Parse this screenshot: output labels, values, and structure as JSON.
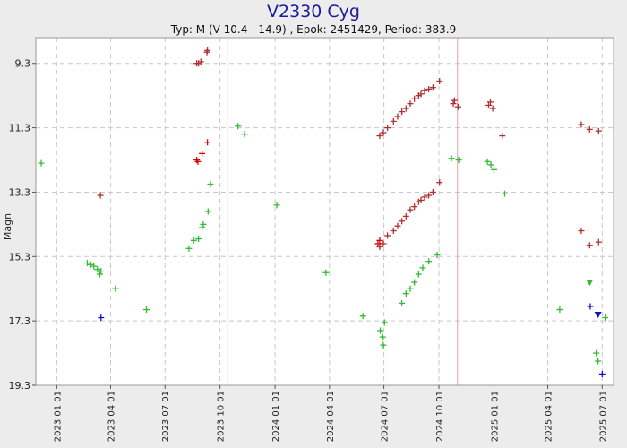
{
  "chart_data": {
    "type": "scatter",
    "title": "V2330 Cyg",
    "subtitle": "Typ: M (V 10.4 - 14.9) , Epok: 2451429, Period: 383.9",
    "ylabel": "Magn",
    "xlabel": "",
    "y_inverted": true,
    "ylim": [
      19.3,
      8.5
    ],
    "xlim": [
      "2022-11-27",
      "2025-07-20"
    ],
    "y_ticks": [
      9.3,
      11.3,
      13.3,
      15.3,
      17.3,
      19.3
    ],
    "y_tick_labels": [
      "9.3",
      "11.3",
      "13.3",
      "15.3",
      "17.3",
      "19.3"
    ],
    "x_ticks": [
      "2023-01-01",
      "2023-04-01",
      "2023-07-01",
      "2023-10-01",
      "2024-01-01",
      "2024-04-01",
      "2024-07-01",
      "2024-10-01",
      "2025-01-01",
      "2025-04-01",
      "2025-07-01"
    ],
    "x_tick_labels": [
      "2023 01 01",
      "2023 04 01",
      "2023 07 01",
      "2023 10 01",
      "2024 01 01",
      "2024 04 01",
      "2024 07 01",
      "2024 10 01",
      "2025 01 01",
      "2025 04 01",
      "2025 07 01"
    ],
    "max_lines": [
      "2023-10-14",
      "2024-11-01"
    ],
    "grid": true,
    "colors": {
      "background": "#ececec",
      "plot_background": "#ffffff",
      "grid": "#c8c8c8",
      "max_line": "#e6a0a0",
      "title": "#1a1a9c"
    },
    "series": [
      {
        "color": "#b03030",
        "marker": "plus",
        "points": [
          [
            "2023-08-23",
            9.3
          ],
          [
            "2023-08-26",
            9.3
          ],
          [
            "2023-08-30",
            9.25
          ],
          [
            "2023-09-09",
            8.95
          ],
          [
            "2023-09-10",
            8.9
          ],
          [
            "2024-06-24",
            11.55
          ],
          [
            "2024-06-30",
            11.45
          ],
          [
            "2024-07-07",
            11.3
          ],
          [
            "2024-07-17",
            11.1
          ],
          [
            "2024-07-24",
            10.95
          ],
          [
            "2024-07-31",
            10.8
          ],
          [
            "2024-08-07",
            10.7
          ],
          [
            "2024-08-14",
            10.55
          ],
          [
            "2024-08-21",
            10.4
          ],
          [
            "2024-08-28",
            10.3
          ],
          [
            "2024-09-01",
            10.25
          ],
          [
            "2024-09-07",
            10.15
          ],
          [
            "2024-09-14",
            10.1
          ],
          [
            "2024-09-21",
            10.05
          ],
          [
            "2024-10-02",
            9.85
          ],
          [
            "2024-10-25",
            10.55
          ],
          [
            "2024-10-27",
            10.45
          ],
          [
            "2024-11-02",
            10.65
          ],
          [
            "2024-12-23",
            10.6
          ],
          [
            "2024-12-26",
            10.5
          ],
          [
            "2024-12-30",
            10.7
          ],
          [
            "2025-01-15",
            11.55
          ],
          [
            "2025-05-27",
            11.2
          ],
          [
            "2025-06-10",
            11.35
          ],
          [
            "2025-06-25",
            11.4
          ],
          [
            "2024-06-24",
            15.0
          ],
          [
            "2024-06-30",
            14.9
          ],
          [
            "2024-07-07",
            14.65
          ],
          [
            "2024-07-17",
            14.5
          ],
          [
            "2024-07-24",
            14.35
          ],
          [
            "2024-07-31",
            14.2
          ],
          [
            "2024-08-07",
            14.05
          ],
          [
            "2024-08-14",
            13.85
          ],
          [
            "2024-08-21",
            13.75
          ],
          [
            "2024-08-28",
            13.6
          ],
          [
            "2024-09-01",
            13.55
          ],
          [
            "2024-09-07",
            13.45
          ],
          [
            "2024-09-14",
            13.4
          ],
          [
            "2024-09-21",
            13.3
          ],
          [
            "2024-10-02",
            13.0
          ],
          [
            "2025-05-27",
            14.5
          ],
          [
            "2025-06-10",
            14.95
          ],
          [
            "2025-06-25",
            14.85
          ],
          [
            "2023-03-15",
            13.4
          ]
        ]
      },
      {
        "color": "#e00000",
        "marker": "plus",
        "points": [
          [
            "2023-08-23",
            12.3
          ],
          [
            "2023-08-25",
            12.35
          ],
          [
            "2023-09-01",
            12.1
          ],
          [
            "2023-09-10",
            11.75
          ],
          [
            "2024-06-21",
            14.9
          ],
          [
            "2024-06-24",
            14.8
          ]
        ]
      },
      {
        "color": "#33bb33",
        "marker": "plus",
        "points": [
          [
            "2022-12-06",
            12.4
          ],
          [
            "2023-02-21",
            15.5
          ],
          [
            "2023-02-27",
            15.55
          ],
          [
            "2023-03-04",
            15.6
          ],
          [
            "2023-03-10",
            15.7
          ],
          [
            "2023-03-14",
            15.85
          ],
          [
            "2023-03-16",
            15.75
          ],
          [
            "2023-04-09",
            16.3
          ],
          [
            "2023-05-31",
            16.95
          ],
          [
            "2023-08-10",
            15.05
          ],
          [
            "2023-08-18",
            14.8
          ],
          [
            "2023-08-26",
            14.75
          ],
          [
            "2023-09-01",
            14.4
          ],
          [
            "2023-09-03",
            14.3
          ],
          [
            "2023-09-11",
            13.9
          ],
          [
            "2023-09-15",
            13.05
          ],
          [
            "2023-10-31",
            11.25
          ],
          [
            "2023-11-11",
            11.5
          ],
          [
            "2024-01-04",
            13.7
          ],
          [
            "2024-03-26",
            15.8
          ],
          [
            "2024-05-27",
            17.15
          ],
          [
            "2024-06-25",
            17.6
          ],
          [
            "2024-06-29",
            17.8
          ],
          [
            "2024-06-30",
            18.05
          ],
          [
            "2024-07-02",
            17.35
          ],
          [
            "2024-07-31",
            16.75
          ],
          [
            "2024-08-07",
            16.45
          ],
          [
            "2024-08-14",
            16.3
          ],
          [
            "2024-08-21",
            16.1
          ],
          [
            "2024-08-28",
            15.85
          ],
          [
            "2024-09-04",
            15.65
          ],
          [
            "2024-09-14",
            15.45
          ],
          [
            "2024-09-28",
            15.25
          ],
          [
            "2024-10-22",
            12.25
          ],
          [
            "2024-11-03",
            12.3
          ],
          [
            "2024-12-21",
            12.35
          ],
          [
            "2024-12-27",
            12.45
          ],
          [
            "2025-01-01",
            12.6
          ],
          [
            "2025-01-19",
            13.35
          ],
          [
            "2025-04-21",
            16.95
          ],
          [
            "2025-06-21",
            18.3
          ],
          [
            "2025-06-24",
            18.55
          ],
          [
            "2025-07-06",
            17.2
          ]
        ]
      },
      {
        "color": "#33bb33",
        "marker": "triangle-down",
        "points": [
          [
            "2025-06-10",
            16.1
          ]
        ]
      },
      {
        "color": "#1010cc",
        "marker": "plus",
        "points": [
          [
            "2023-03-16",
            17.2
          ],
          [
            "2025-06-11",
            16.85
          ],
          [
            "2025-07-01",
            18.95
          ]
        ]
      },
      {
        "color": "#1010cc",
        "marker": "triangle-down",
        "points": [
          [
            "2025-06-24",
            17.1
          ]
        ]
      }
    ]
  }
}
